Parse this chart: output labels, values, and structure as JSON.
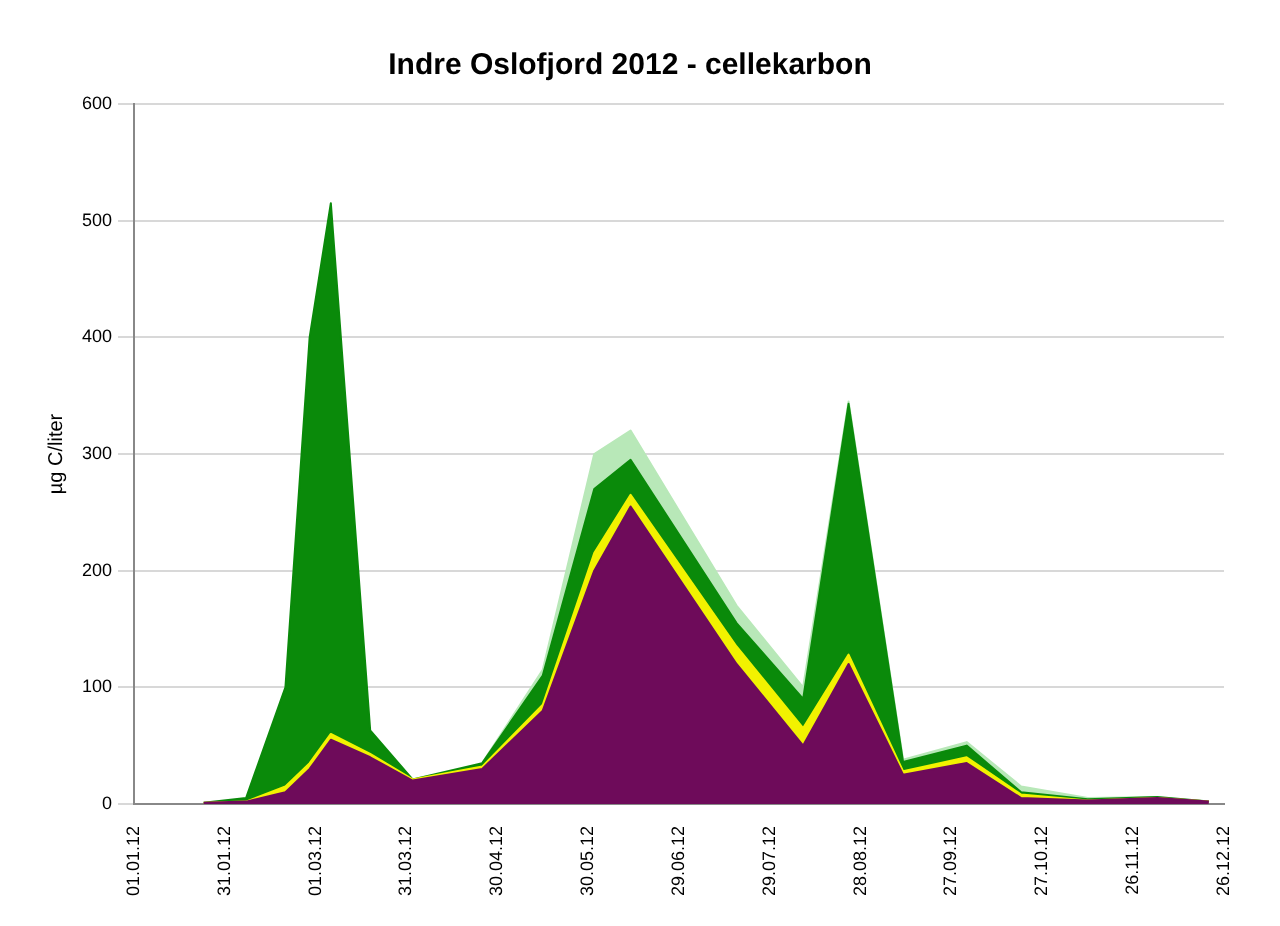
{
  "chart_data": {
    "type": "area",
    "title": "Indre Oslofjord 2012 - cellekarbon",
    "ylabel": "µg C/liter",
    "stacked": true,
    "grid": "y",
    "legend": false,
    "marker": "none",
    "x": [
      "2012-01-24",
      "2012-02-07",
      "2012-02-20",
      "2012-02-28",
      "2012-03-06",
      "2012-03-19",
      "2012-04-02",
      "2012-04-25",
      "2012-05-15",
      "2012-06-01",
      "2012-06-13",
      "2012-07-18",
      "2012-08-09",
      "2012-08-24",
      "2012-09-11",
      "2012-10-02",
      "2012-10-20",
      "2012-11-11",
      "2012-12-04",
      "2012-12-21"
    ],
    "series": [
      {
        "color": "#6e0b5a",
        "values": [
          1,
          2,
          10,
          30,
          55,
          40,
          20,
          30,
          80,
          200,
          255,
          120,
          50,
          120,
          25,
          35,
          5,
          3,
          5,
          2
        ]
      },
      {
        "color": "#f2f200",
        "values": [
          0,
          0,
          5,
          5,
          5,
          3,
          1,
          2,
          5,
          15,
          10,
          15,
          15,
          8,
          3,
          5,
          3,
          0,
          0,
          0
        ]
      },
      {
        "color": "#0a8a0a",
        "values": [
          0,
          3,
          85,
          365,
          455,
          20,
          0,
          3,
          25,
          55,
          30,
          20,
          25,
          215,
          8,
          10,
          2,
          1,
          1,
          0
        ]
      },
      {
        "color": "#b8e8b8",
        "values": [
          null,
          null,
          null,
          null,
          null,
          null,
          null,
          0,
          5,
          30,
          25,
          15,
          10,
          2,
          2,
          3,
          5,
          1,
          0,
          null
        ]
      }
    ],
    "xlim": [
      "2012-01-01",
      "2012-12-26"
    ],
    "xticks": [
      {
        "value": "2012-01-01",
        "label": "01.01.12"
      },
      {
        "value": "2012-01-31",
        "label": "31.01.12"
      },
      {
        "value": "2012-03-01",
        "label": "01.03.12"
      },
      {
        "value": "2012-03-31",
        "label": "31.03.12"
      },
      {
        "value": "2012-04-30",
        "label": "30.04.12"
      },
      {
        "value": "2012-05-30",
        "label": "30.05.12"
      },
      {
        "value": "2012-06-29",
        "label": "29.06.12"
      },
      {
        "value": "2012-07-29",
        "label": "29.07.12"
      },
      {
        "value": "2012-08-28",
        "label": "28.08.12"
      },
      {
        "value": "2012-09-27",
        "label": "27.09.12"
      },
      {
        "value": "2012-10-27",
        "label": "27.10.12"
      },
      {
        "value": "2012-11-26",
        "label": "26.11.12"
      },
      {
        "value": "2012-12-26",
        "label": "26.12.12"
      }
    ],
    "ylim": [
      0,
      600
    ],
    "yticks": [
      0,
      100,
      200,
      300,
      400,
      500,
      600
    ]
  }
}
